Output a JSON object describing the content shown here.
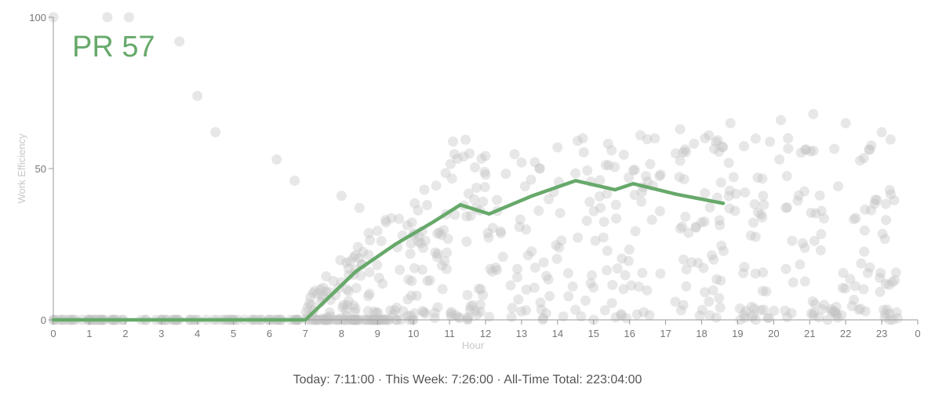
{
  "header": {
    "pr_label": "PR 57"
  },
  "footer": {
    "today_label": "Today:",
    "today_value": "7:11:00",
    "separator": " · ",
    "week_label": "This Week:",
    "week_value": "7:26:00",
    "total_label": "All-Time Total:",
    "total_value": "223:04:00"
  },
  "colors": {
    "trend": "#67a96b",
    "scatter": "#d6d6d6",
    "axis": "#999999",
    "tick_text": "#777777",
    "axis_title": "#c8c8c8"
  },
  "chart_data": {
    "type": "scatter",
    "title": "PR 57",
    "xlabel": "Hour",
    "ylabel": "Work Efficiency",
    "xlim": [
      0,
      24
    ],
    "ylim": [
      0,
      100
    ],
    "x_ticks": [
      "0",
      "1",
      "2",
      "3",
      "4",
      "5",
      "6",
      "7",
      "8",
      "9",
      "10",
      "11",
      "12",
      "13",
      "14",
      "15",
      "16",
      "17",
      "18",
      "19",
      "20",
      "21",
      "22",
      "23",
      "0"
    ],
    "y_ticks": [
      "0",
      "50",
      "100"
    ],
    "grid": false,
    "legend": "none",
    "series": [
      {
        "name": "trend",
        "type": "line",
        "color": "#67a96b",
        "x": [
          0,
          7,
          8.4,
          9.5,
          10.5,
          11.3,
          12.1,
          13.3,
          14.5,
          15.6,
          16.1,
          17.3,
          18.6
        ],
        "y": [
          0,
          0,
          16,
          25,
          32,
          38,
          35,
          41,
          46,
          43,
          45,
          41.5,
          38.5
        ]
      },
      {
        "name": "sessions",
        "type": "scatter",
        "color": "#d6d6d6",
        "x": [
          0.0,
          1.5,
          2.1,
          3.5,
          4.0,
          4.5,
          6.2,
          6.7,
          8.0,
          8.5,
          10.3,
          12.0,
          13.0,
          13.5,
          14.0,
          14.7,
          15.5,
          16.3,
          16.7,
          17.4,
          18.2,
          18.8,
          20.2,
          20.4,
          21.1,
          22.0,
          23.0,
          0.5,
          3.0,
          5.5,
          7.2,
          9.0,
          11.5,
          15.0,
          19.5,
          21.5,
          23.3
        ],
        "y": [
          100,
          100,
          100,
          92,
          74,
          62,
          53,
          46,
          41,
          37,
          43,
          48,
          52,
          50,
          57,
          60,
          56,
          61,
          60,
          63,
          61,
          65,
          66,
          60,
          68,
          65,
          62,
          0,
          0,
          0,
          0,
          0,
          0,
          0,
          0,
          0,
          0
        ]
      }
    ],
    "annotations": [
      "PR 57"
    ]
  }
}
